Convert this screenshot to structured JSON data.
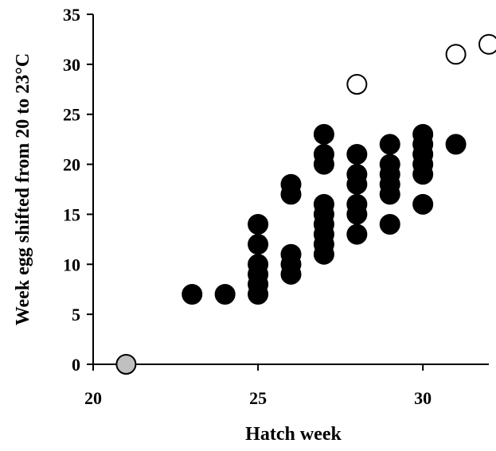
{
  "chart_data": {
    "type": "scatter",
    "xlabel": "Hatch week",
    "ylabel": "Week egg shifted from 20 to 23°C",
    "xlim": [
      20,
      32
    ],
    "ylim": [
      0,
      35
    ],
    "xticks": [
      20,
      25,
      30
    ],
    "yticks": [
      0,
      5,
      10,
      15,
      20,
      25,
      30,
      35
    ],
    "grid": false,
    "legend": "none",
    "series": [
      {
        "marker": "filled-circle",
        "color": "#000000",
        "points": [
          [
            23,
            7
          ],
          [
            24,
            7
          ],
          [
            25,
            7
          ],
          [
            25,
            8
          ],
          [
            25,
            9
          ],
          [
            25,
            10
          ],
          [
            25,
            12
          ],
          [
            25,
            14
          ],
          [
            26,
            9
          ],
          [
            26,
            10
          ],
          [
            26,
            11
          ],
          [
            26,
            17
          ],
          [
            26,
            18
          ],
          [
            27,
            11
          ],
          [
            27,
            12
          ],
          [
            27,
            13
          ],
          [
            27,
            14
          ],
          [
            27,
            15
          ],
          [
            27,
            16
          ],
          [
            27,
            20
          ],
          [
            27,
            21
          ],
          [
            27,
            23
          ],
          [
            28,
            13
          ],
          [
            28,
            15
          ],
          [
            28,
            16
          ],
          [
            28,
            18
          ],
          [
            28,
            19
          ],
          [
            28,
            21
          ],
          [
            29,
            14
          ],
          [
            29,
            17
          ],
          [
            29,
            18
          ],
          [
            29,
            19
          ],
          [
            29,
            20
          ],
          [
            29,
            22
          ],
          [
            30,
            16
          ],
          [
            30,
            19
          ],
          [
            30,
            20
          ],
          [
            30,
            21
          ],
          [
            30,
            22
          ],
          [
            30,
            23
          ],
          [
            31,
            22
          ]
        ]
      },
      {
        "marker": "open-circle",
        "color": "#000000",
        "points": [
          [
            28,
            28
          ],
          [
            31,
            31
          ],
          [
            32,
            32
          ]
        ]
      },
      {
        "marker": "gray-circle",
        "color": "#c0c0c0",
        "points": [
          [
            21,
            0
          ]
        ]
      }
    ]
  }
}
